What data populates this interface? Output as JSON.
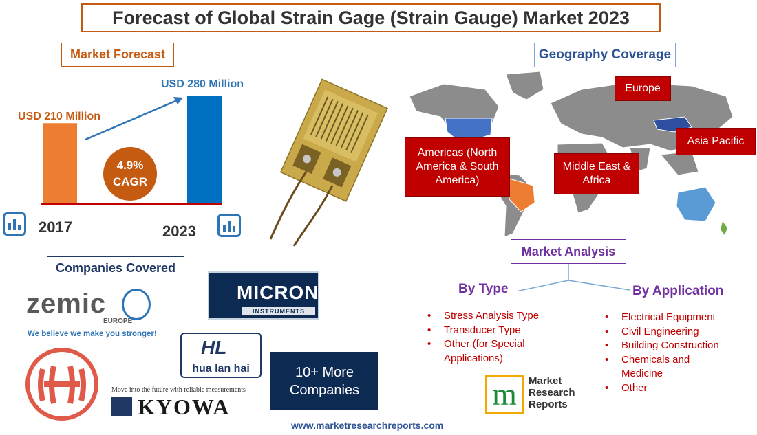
{
  "title": "Forecast of Global Strain Gage (Strain Gauge) Market 2023",
  "market_forecast": {
    "label": "Market Forecast",
    "value_2017": "USD 210 Million",
    "value_2023": "USD 280 Million",
    "cagr_value": "4.9%",
    "cagr_label": "CAGR",
    "year_start": "2017",
    "year_end": "2023",
    "bar_start_value": 210,
    "bar_end_value": 280,
    "bar_start_color": "#ed7d31",
    "bar_end_color": "#0070c0",
    "baseline_color": "#c00000"
  },
  "geography": {
    "label": "Geography Coverage",
    "regions": {
      "europe": "Europe",
      "americas": "Americas (North America & South America)",
      "mea": "Middle East & Africa",
      "apac": "Asia Pacific"
    }
  },
  "market_analysis": {
    "label": "Market Analysis",
    "by_type": {
      "heading": "By Type",
      "items": [
        "Stress Analysis Type",
        "Transducer Type",
        "Other (for Special Applications)"
      ]
    },
    "by_application": {
      "heading": "By Application",
      "items": [
        "Electrical Equipment",
        "Civil Engineering",
        "Building Construction",
        "Chemicals and Medicine",
        "Other"
      ]
    }
  },
  "companies": {
    "label": "Companies Covered",
    "zemic": {
      "name": "zemic",
      "sub": "EUROPE",
      "tagline": "We believe we make you stronger!"
    },
    "micron": {
      "name": "MICRON",
      "sub": "INSTRUMENTS"
    },
    "hualanhai": {
      "name": "hua lan hai"
    },
    "kyowa": {
      "name": "KYOWA",
      "tagline": "Move into the future with reliable measurements"
    },
    "more": "10+ More Companies"
  },
  "brand": {
    "line1": "Market",
    "line2": "Research",
    "line3": "Reports",
    "url": "www.marketresearchreports.com"
  }
}
